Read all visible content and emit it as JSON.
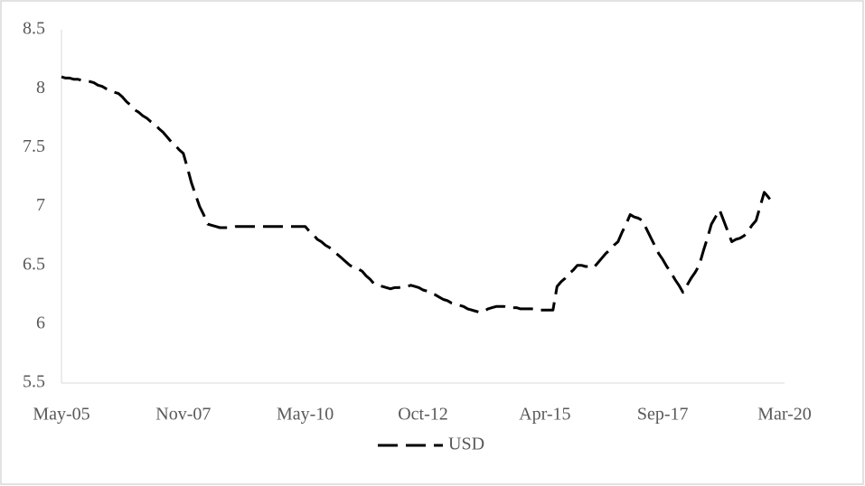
{
  "chart_data": {
    "type": "line",
    "categories": [
      "May-05",
      null,
      null,
      null,
      null,
      null,
      null,
      null,
      null,
      null,
      null,
      null,
      null,
      null,
      null,
      null,
      null,
      null,
      null,
      null,
      null,
      null,
      null,
      null,
      null,
      null,
      null,
      null,
      null,
      null,
      "Nov-07",
      null,
      null,
      null,
      null,
      null,
      null,
      null,
      null,
      null,
      null,
      null,
      null,
      null,
      null,
      null,
      null,
      null,
      null,
      null,
      null,
      null,
      null,
      null,
      null,
      null,
      null,
      null,
      null,
      null,
      "May-10",
      null,
      null,
      null,
      null,
      null,
      null,
      null,
      null,
      null,
      null,
      null,
      null,
      null,
      null,
      null,
      null,
      null,
      null,
      null,
      null,
      null,
      null,
      null,
      null,
      null,
      null,
      null,
      null,
      "Oct-12",
      null,
      null,
      null,
      null,
      null,
      null,
      null,
      null,
      null,
      null,
      null,
      null,
      null,
      null,
      null,
      null,
      null,
      null,
      null,
      null,
      null,
      null,
      null,
      null,
      null,
      null,
      null,
      null,
      null,
      "Apr-15",
      null,
      null,
      null,
      null,
      null,
      null,
      null,
      null,
      null,
      null,
      null,
      null,
      null,
      null,
      null,
      null,
      null,
      null,
      null,
      null,
      null,
      null,
      null,
      null,
      null,
      null,
      null,
      null,
      "Sep-17",
      null,
      null,
      null,
      null,
      null,
      null,
      null,
      null,
      null,
      null,
      null,
      null,
      null,
      null,
      null,
      null,
      null,
      null,
      null,
      null,
      null,
      null,
      null,
      null,
      null,
      null,
      null,
      null,
      null,
      "Mar-20"
    ],
    "series": [
      {
        "name": "USD",
        "color": "#000000",
        "values": [
          8.1,
          8.09,
          8.09,
          8.08,
          8.08,
          8.07,
          8.07,
          8.06,
          8.05,
          8.03,
          8.02,
          8.0,
          7.99,
          7.97,
          7.96,
          7.93,
          7.89,
          7.86,
          7.82,
          7.8,
          7.77,
          7.75,
          7.72,
          7.7,
          7.66,
          7.63,
          7.59,
          7.55,
          7.52,
          7.48,
          7.45,
          7.33,
          7.2,
          7.1,
          7.0,
          6.93,
          6.85,
          6.84,
          6.83,
          6.82,
          6.82,
          6.82,
          6.82,
          6.83,
          6.83,
          6.83,
          6.83,
          6.83,
          6.83,
          6.83,
          6.83,
          6.83,
          6.83,
          6.83,
          6.83,
          6.83,
          6.83,
          6.83,
          6.83,
          6.83,
          6.83,
          6.79,
          6.76,
          6.72,
          6.7,
          6.67,
          6.65,
          6.62,
          6.59,
          6.56,
          6.53,
          6.5,
          6.48,
          6.47,
          6.45,
          6.41,
          6.38,
          6.34,
          6.33,
          6.32,
          6.31,
          6.3,
          6.31,
          6.31,
          6.32,
          6.32,
          6.33,
          6.32,
          6.31,
          6.29,
          6.28,
          6.26,
          6.25,
          6.23,
          6.21,
          6.2,
          6.18,
          6.17,
          6.16,
          6.15,
          6.13,
          6.12,
          6.11,
          6.1,
          6.11,
          6.13,
          6.14,
          6.15,
          6.15,
          6.15,
          6.14,
          6.14,
          6.14,
          6.13,
          6.13,
          6.13,
          6.13,
          6.13,
          6.12,
          6.12,
          6.12,
          6.12,
          6.32,
          6.36,
          6.39,
          6.43,
          6.46,
          6.5,
          6.5,
          6.49,
          6.49,
          6.48,
          6.52,
          6.56,
          6.6,
          6.63,
          6.67,
          6.7,
          6.78,
          6.85,
          6.93,
          6.91,
          6.9,
          6.88,
          6.81,
          6.74,
          6.67,
          6.6,
          6.55,
          6.49,
          6.44,
          6.38,
          6.33,
          6.27,
          6.33,
          6.39,
          6.44,
          6.5,
          6.62,
          6.73,
          6.85,
          6.91,
          6.97,
          6.88,
          6.79,
          6.7,
          6.72,
          6.73,
          6.75,
          6.79,
          6.84,
          6.88,
          7.0,
          7.12,
          7.08,
          7.03,
          null,
          null,
          null
        ]
      }
    ],
    "ylim": [
      5.5,
      8.5
    ],
    "yticks": [
      5.5,
      6,
      6.5,
      7,
      7.5,
      8,
      8.5
    ],
    "grid": false,
    "legend": "bottom"
  }
}
